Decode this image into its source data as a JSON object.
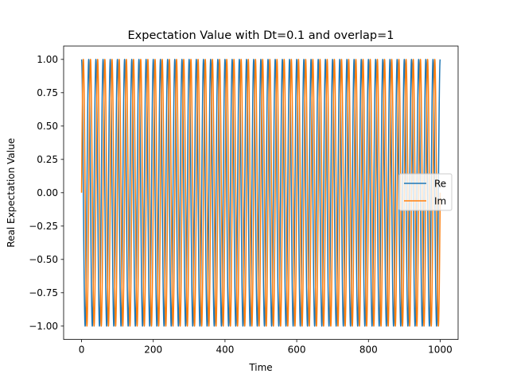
{
  "chart_data": {
    "type": "line",
    "title": "Expectation Value with Dt=0.1 and overlap=1",
    "xlabel": "Time",
    "ylabel": "Real Expectation Value",
    "xlim": [
      -50,
      1050
    ],
    "ylim": [
      -1.1,
      1.1
    ],
    "x_ticks": [
      0,
      200,
      400,
      600,
      800,
      1000
    ],
    "x_tick_labels": [
      "0",
      "200",
      "400",
      "600",
      "800",
      "1000"
    ],
    "y_ticks": [
      1.0,
      0.75,
      0.5,
      0.25,
      0.0,
      -0.25,
      -0.5,
      -0.75,
      -1.0
    ],
    "y_tick_labels": [
      "1.00",
      "0.75",
      "0.50",
      "0.25",
      "0.00",
      "−0.25",
      "−0.50",
      "−0.75",
      "−1.00"
    ],
    "grid": false,
    "legend_position": "center-right",
    "x_range": [
      0,
      1000
    ],
    "period": 20,
    "series": [
      {
        "name": "Re",
        "function": "cos",
        "color": "#1f77b4"
      },
      {
        "name": "Im",
        "function": "sin",
        "color": "#ff7f0e"
      }
    ]
  }
}
